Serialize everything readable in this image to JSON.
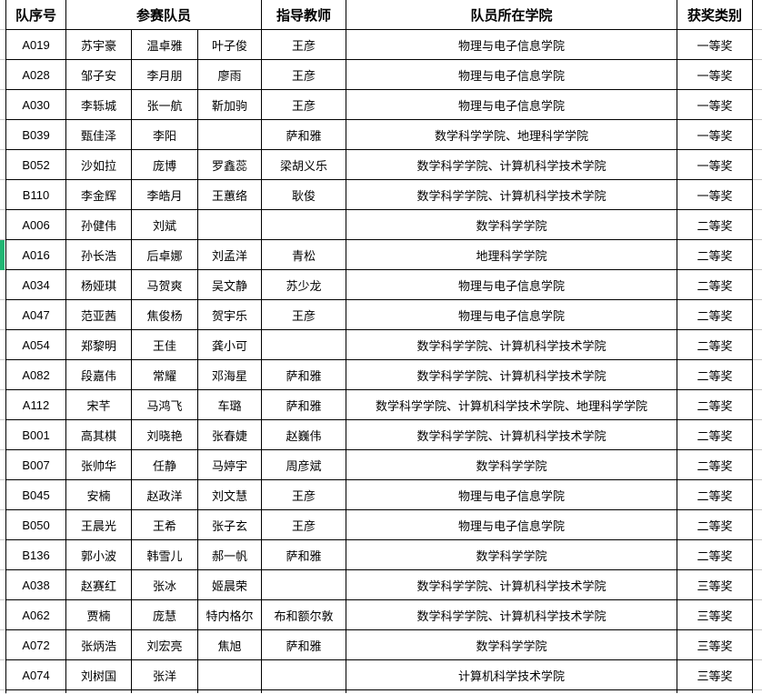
{
  "table": {
    "headers": {
      "team_id": "队序号",
      "members": "参赛队员",
      "advisor": "指导教师",
      "college": "队员所在学院",
      "award": "获奖类别"
    },
    "rows": [
      {
        "id": "A019",
        "m1": "苏宇豪",
        "m2": "温卓雅",
        "m3": "叶子俊",
        "advisor": "王彦",
        "college": "物理与电子信息学院",
        "award": "一等奖"
      },
      {
        "id": "A028",
        "m1": "邹子安",
        "m2": "李月朋",
        "m3": "廖雨",
        "advisor": "王彦",
        "college": "物理与电子信息学院",
        "award": "一等奖"
      },
      {
        "id": "A030",
        "m1": "李轹城",
        "m2": "张一航",
        "m3": "靳加驹",
        "advisor": "王彦",
        "college": "物理与电子信息学院",
        "award": "一等奖"
      },
      {
        "id": "B039",
        "m1": "甄佳泽",
        "m2": "李阳",
        "m3": "",
        "advisor": "萨和雅",
        "college": "数学科学学院、地理科学学院",
        "award": "一等奖"
      },
      {
        "id": "B052",
        "m1": "沙如拉",
        "m2": "庞博",
        "m3": "罗鑫蕊",
        "advisor": "梁胡义乐",
        "college": "数学科学学院、计算机科学技术学院",
        "award": "一等奖"
      },
      {
        "id": "B110",
        "m1": "李金辉",
        "m2": "李皓月",
        "m3": "王蕙络",
        "advisor": "耿俊",
        "college": "数学科学学院、计算机科学技术学院",
        "award": "一等奖"
      },
      {
        "id": "A006",
        "m1": "孙健伟",
        "m2": "刘斌",
        "m3": "",
        "advisor": "",
        "college": "数学科学学院",
        "award": "二等奖"
      },
      {
        "id": "A016",
        "m1": "孙长浩",
        "m2": "后卓娜",
        "m3": "刘孟洋",
        "advisor": "青松",
        "college": "地理科学学院",
        "award": "二等奖"
      },
      {
        "id": "A034",
        "m1": "杨娅琪",
        "m2": "马贺爽",
        "m3": "吴文静",
        "advisor": "苏少龙",
        "college": "物理与电子信息学院",
        "award": "二等奖"
      },
      {
        "id": "A047",
        "m1": "范亚茜",
        "m2": "焦俊杨",
        "m3": "贺宇乐",
        "advisor": "王彦",
        "college": "物理与电子信息学院",
        "award": "二等奖"
      },
      {
        "id": "A054",
        "m1": "郑黎明",
        "m2": "王佳",
        "m3": "龚小可",
        "advisor": "",
        "college": "数学科学学院、计算机科学技术学院",
        "award": "二等奖"
      },
      {
        "id": "A082",
        "m1": "段嘉伟",
        "m2": "常耀",
        "m3": "邓海星",
        "advisor": "萨和雅",
        "college": "数学科学学院、计算机科学技术学院",
        "award": "二等奖"
      },
      {
        "id": "A112",
        "m1": "宋芊",
        "m2": "马鸿飞",
        "m3": "车璐",
        "advisor": "萨和雅",
        "college": "数学科学学院、计算机科学技术学院、地理科学学院",
        "award": "二等奖"
      },
      {
        "id": "B001",
        "m1": "高其棋",
        "m2": "刘晓艳",
        "m3": "张春婕",
        "advisor": "赵巍伟",
        "college": "数学科学学院、计算机科学技术学院",
        "award": "二等奖"
      },
      {
        "id": "B007",
        "m1": "张帅华",
        "m2": "任静",
        "m3": "马婷宇",
        "advisor": "周彦斌",
        "college": "数学科学学院",
        "award": "二等奖"
      },
      {
        "id": "B045",
        "m1": "安楠",
        "m2": "赵政洋",
        "m3": "刘文慧",
        "advisor": "王彦",
        "college": "物理与电子信息学院",
        "award": "二等奖"
      },
      {
        "id": "B050",
        "m1": "王晨光",
        "m2": "王希",
        "m3": "张子玄",
        "advisor": "王彦",
        "college": "物理与电子信息学院",
        "award": "二等奖"
      },
      {
        "id": "B136",
        "m1": "郭小波",
        "m2": "韩雪儿",
        "m3": "郝一帆",
        "advisor": "萨和雅",
        "college": "数学科学学院",
        "award": "二等奖"
      },
      {
        "id": "A038",
        "m1": "赵赛红",
        "m2": "张冰",
        "m3": "姬晨荣",
        "advisor": "",
        "college": "数学科学学院、计算机科学技术学院",
        "award": "三等奖"
      },
      {
        "id": "A062",
        "m1": "贾楠",
        "m2": "庞慧",
        "m3": "特内格尔",
        "advisor": "布和额尔敦",
        "college": "数学科学学院、计算机科学技术学院",
        "award": "三等奖"
      },
      {
        "id": "A072",
        "m1": "张炳浩",
        "m2": "刘宏亮",
        "m3": "焦旭",
        "advisor": "萨和雅",
        "college": "数学科学学院",
        "award": "三等奖"
      },
      {
        "id": "A074",
        "m1": "刘树国",
        "m2": "张洋",
        "m3": "",
        "advisor": "",
        "college": "计算机科学技术学院",
        "award": "三等奖"
      }
    ]
  },
  "colors": {
    "cell_border": "#000000",
    "gridline_gray": "#c9c9c9",
    "selection_green": "#22b573",
    "text": "#000000",
    "background": "#ffffff"
  }
}
